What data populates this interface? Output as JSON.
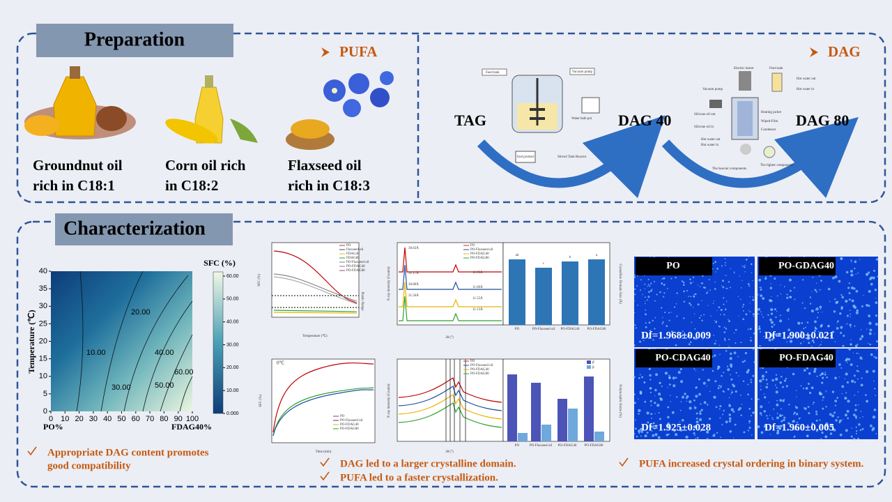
{
  "preparation": {
    "title": "Preparation",
    "pufa_heading": "PUFA",
    "dag_heading": "DAG",
    "oils": [
      [
        "Groundnut oil",
        "rich in C18:1"
      ],
      [
        "Corn oil rich",
        "in C18:2"
      ],
      [
        "Flaxseed oil",
        "rich in C18:3"
      ]
    ],
    "process": [
      "TAG",
      "DAG 40",
      "DAG 80"
    ],
    "reactor_labels": [
      "Feed tank",
      "Vacuum pump",
      "Water bath pot",
      "End product",
      "Stirred Tank Reactor"
    ],
    "wiped_film_labels": [
      "Electric motor",
      "Feed tank",
      "Hot water out",
      "Hot water in",
      "Vacuum pump",
      "Silicone oil out",
      "Heating jacket",
      "Wiped-Film",
      "Silicone oil  in",
      "Condenser",
      "Hot water out",
      "Hot water in",
      "The lighter components",
      "The heavier components"
    ]
  },
  "characterization": {
    "title": "Characterization",
    "contour": {
      "colorbar_title": "SFC (%)",
      "y_label": "Temperature (℃)",
      "x_left": "PO%",
      "x_right": "FDAG40%",
      "xlim": [
        0,
        100
      ],
      "xticks": [
        0,
        10,
        20,
        30,
        40,
        50,
        60,
        70,
        80,
        90,
        100
      ],
      "ylim": [
        0,
        40
      ],
      "yticks": [
        0,
        5,
        10,
        15,
        20,
        25,
        30,
        35,
        40
      ],
      "clim": [
        0,
        60
      ],
      "cticks": [
        {
          "value": 0,
          "label": "0.000"
        },
        {
          "value": 10,
          "label": "10.00"
        },
        {
          "value": 20,
          "label": "20.00"
        },
        {
          "value": 30,
          "label": "30.00"
        },
        {
          "value": 40,
          "label": "40.00"
        },
        {
          "value": 50,
          "label": "50.00"
        },
        {
          "value": 60,
          "label": "60.00"
        }
      ],
      "contour_labels": [
        "10.00",
        "20.00",
        "30.00",
        "40.00",
        "50.00",
        "60.00"
      ]
    },
    "sfc_temp": {
      "y_label": "SFC (%)",
      "x_label": "Temperature (℃)",
      "legend": [
        "PO",
        "Flaxseed oil",
        "FDAG40",
        "FDAG80",
        "PO-Flaxseed oil",
        "PO-FDAG40",
        "PO-FDAG80"
      ],
      "note": "Plastic Range"
    },
    "sfc_time": {
      "y_label": "SFC (%)",
      "x_label": "Time (min)",
      "note": "0℃",
      "legend": [
        "PO",
        "PO-Flaxseed oil",
        "PO-FDAG40",
        "PO-FDAG80"
      ]
    },
    "xrd1": {
      "y_label": "X-ray intensity (Counts)",
      "x_label": "2θ (°)",
      "legend": [
        "PO",
        "PO-Flaxseed oil",
        "PO-FDAG40",
        "PO-FDAG80"
      ],
      "peaks": [
        "30.62Å",
        "31.17Å",
        "30.80Å",
        "31.56Å",
        "11.95Å",
        "11.60Å",
        "11.55Å",
        "11.13Å"
      ],
      "bar_label": "Crystalline Domain Size (Å)",
      "bar_categories": [
        "PO",
        "PO-Flaxseed oil",
        "PO-FDAG40",
        "PO-FDAG80"
      ],
      "letters": [
        "ab",
        "c",
        "b",
        "a"
      ]
    },
    "xrd2": {
      "y_label": "X-ray intensity (Counts)",
      "x_label": "2θ (°)",
      "legend": [
        "PO",
        "PO-Flaxseed oil",
        "PO-FDAG40",
        "PO-FDAG80"
      ],
      "bar_label": "Polymorphic forms (%)",
      "bar_categories": [
        "PO",
        "PO-Flaxseed oil",
        "PO-FDAG40",
        "PO-FDAG80"
      ],
      "bar_legend": [
        "β'",
        "β"
      ]
    },
    "micrographs": [
      {
        "label": "PO",
        "df": "Df=1.968±0.009"
      },
      {
        "label": "PO-GDAG40",
        "df": "Df=1.900±0.021"
      },
      {
        "label": "PO-CDAG40",
        "df": "Df=1.925±0.028"
      },
      {
        "label": "PO-FDAG40",
        "df": "Df=1.960±0.005"
      }
    ],
    "conclusions": [
      [
        "Appropriate DAG content promotes",
        "good compatibility"
      ],
      [
        "DAG led to a larger crystalline domain."
      ],
      [
        "PUFA led to a faster crystallization."
      ],
      [
        "PUFA increased crystal ordering in binary system."
      ]
    ]
  }
}
